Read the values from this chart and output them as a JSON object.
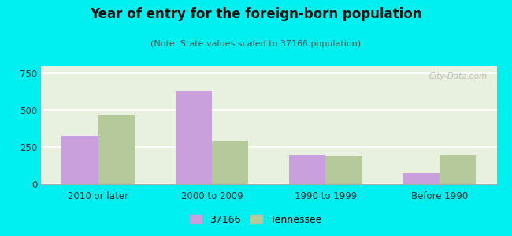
{
  "title": "Year of entry for the foreign-born population",
  "subtitle": "(Note: State values scaled to 37166 population)",
  "categories": [
    "2010 or later",
    "2000 to 2009",
    "1990 to 1999",
    "Before 1990"
  ],
  "values_37166": [
    325,
    630,
    200,
    75
  ],
  "values_tennessee": [
    470,
    295,
    190,
    200
  ],
  "color_37166": "#c9a0dc",
  "color_tennessee": "#b5c99a",
  "background_outer": "#00efef",
  "ylim": [
    0,
    800
  ],
  "yticks": [
    0,
    250,
    500,
    750
  ],
  "legend_label_1": "37166",
  "legend_label_2": "Tennessee",
  "watermark": "City-Data.com"
}
